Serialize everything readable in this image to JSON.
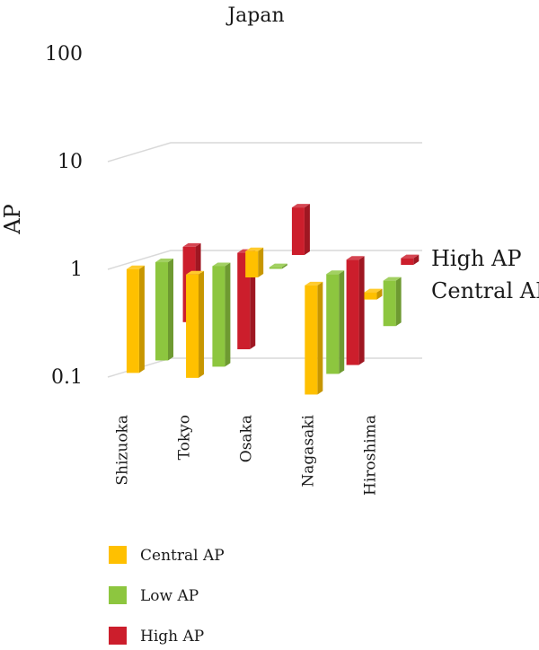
{
  "chart_data": {
    "type": "bar",
    "title": "Japan",
    "ylabel": "AP",
    "xlabel": "",
    "yscale": "log",
    "ylim": [
      0.1,
      100
    ],
    "yticks": [
      "0.1",
      "1",
      "10",
      "100"
    ],
    "categories": [
      "Shizuoka",
      "Tokyo",
      "Osaka",
      "Nagasaki",
      "Hiroshima"
    ],
    "depth_labels": [
      "High AP",
      "Central AP"
    ],
    "series": [
      {
        "name": "Central AP",
        "color": "#FFC000",
        "values": [
          {
            "low": 0.1,
            "high": 0.92
          },
          {
            "low": 0.09,
            "high": 0.82
          },
          {
            "low": 0.77,
            "high": 1.35
          },
          {
            "low": 0.063,
            "high": 0.65
          },
          {
            "low": 0.48,
            "high": 0.56
          }
        ]
      },
      {
        "name": "Low AP",
        "color": "#8DC63F",
        "values": [
          {
            "low": 0.12,
            "high": 0.98
          },
          {
            "low": 0.105,
            "high": 0.9
          },
          {
            "low": 0.85,
            "high": 0.88
          },
          {
            "low": 0.09,
            "high": 0.76
          },
          {
            "low": 0.25,
            "high": 0.66
          }
        ]
      },
      {
        "name": "High AP",
        "color": "#CC1E2C",
        "values": [
          {
            "low": 0.25,
            "high": 1.25
          },
          {
            "low": 0.14,
            "high": 1.1
          },
          {
            "low": 1.05,
            "high": 2.9
          },
          {
            "low": 0.1,
            "high": 0.95
          },
          {
            "low": 0.85,
            "high": 0.98
          }
        ]
      }
    ],
    "legend": {
      "position": "bottom-left"
    },
    "grid": true
  }
}
